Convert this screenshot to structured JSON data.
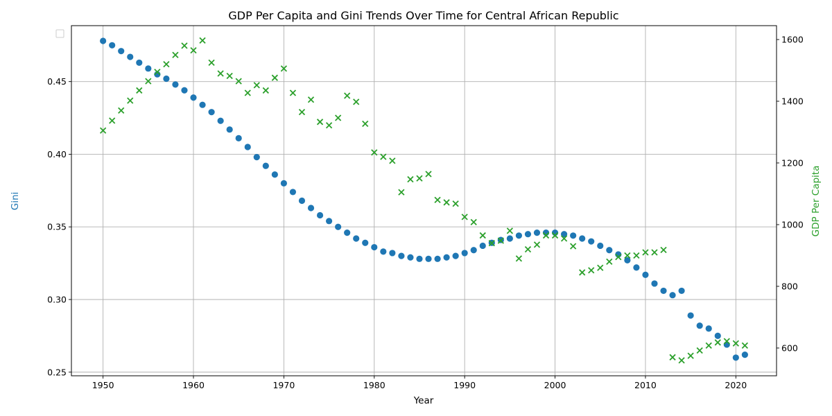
{
  "chart_data": {
    "type": "scatter",
    "title": "GDP Per Capita and Gini Trends Over Time for Central African Republic",
    "xlabel": "Year",
    "ylabel_left": "Gini",
    "ylabel_right": "GDP Per Capita",
    "xlim": [
      1946.5,
      2024.5
    ],
    "ylim_left": [
      0.2475,
      0.4885
    ],
    "ylim_right": [
      510,
      1645
    ],
    "x_ticks": [
      1950,
      1960,
      1970,
      1980,
      1990,
      2000,
      2010,
      2020
    ],
    "y_ticks_left": [
      0.25,
      0.3,
      0.35,
      0.4,
      0.45
    ],
    "y_ticks_left_labels": [
      "0.25",
      "0.30",
      "0.35",
      "0.40",
      "0.45"
    ],
    "y_ticks_right": [
      600,
      800,
      1000,
      1200,
      1400,
      1600
    ],
    "grid": true,
    "legend_placement": "upper-left",
    "colors": {
      "gini": "#1f77b4",
      "gdp": "#2ca02c"
    },
    "series": [
      {
        "axis": "left",
        "marker": "circle",
        "x": [
          1950,
          1951,
          1952,
          1953,
          1954,
          1955,
          1956,
          1957,
          1958,
          1959,
          1960,
          1961,
          1962,
          1963,
          1964,
          1965,
          1966,
          1967,
          1968,
          1969,
          1970,
          1971,
          1972,
          1973,
          1974,
          1975,
          1976,
          1977,
          1978,
          1979,
          1980,
          1981,
          1982,
          1983,
          1984,
          1985,
          1986,
          1987,
          1988,
          1989,
          1990,
          1991,
          1992,
          1993,
          1994,
          1995,
          1996,
          1997,
          1998,
          1999,
          2000,
          2001,
          2002,
          2003,
          2004,
          2005,
          2006,
          2007,
          2008,
          2009,
          2010,
          2011,
          2012,
          2013,
          2014,
          2015,
          2016,
          2017,
          2018,
          2019,
          2020,
          2021
        ],
        "values": [
          0.478,
          0.475,
          0.471,
          0.467,
          0.463,
          0.459,
          0.455,
          0.452,
          0.448,
          0.444,
          0.439,
          0.434,
          0.429,
          0.423,
          0.417,
          0.411,
          0.405,
          0.398,
          0.392,
          0.386,
          0.38,
          0.374,
          0.368,
          0.363,
          0.358,
          0.354,
          0.35,
          0.346,
          0.342,
          0.339,
          0.336,
          0.333,
          0.332,
          0.33,
          0.329,
          0.328,
          0.328,
          0.328,
          0.329,
          0.33,
          0.332,
          0.334,
          0.337,
          0.339,
          0.341,
          0.342,
          0.344,
          0.345,
          0.346,
          0.346,
          0.346,
          0.345,
          0.344,
          0.342,
          0.34,
          0.337,
          0.334,
          0.331,
          0.327,
          0.322,
          0.317,
          0.311,
          0.306,
          0.303,
          0.306,
          0.289,
          0.282,
          0.28,
          0.275,
          0.269,
          0.26,
          0.262
        ]
      },
      {
        "axis": "right",
        "marker": "x",
        "x": [
          1950,
          1951,
          1952,
          1953,
          1954,
          1955,
          1956,
          1957,
          1958,
          1959,
          1960,
          1961,
          1962,
          1963,
          1964,
          1965,
          1966,
          1967,
          1968,
          1969,
          1970,
          1971,
          1972,
          1973,
          1974,
          1975,
          1976,
          1977,
          1978,
          1979,
          1980,
          1981,
          1982,
          1983,
          1984,
          1985,
          1986,
          1987,
          1988,
          1989,
          1990,
          1991,
          1992,
          1993,
          1994,
          1995,
          1996,
          1997,
          1998,
          1999,
          2000,
          2001,
          2002,
          2003,
          2004,
          2005,
          2006,
          2007,
          2008,
          2009,
          2010,
          2011,
          2012,
          2013,
          2014,
          2015,
          2016,
          2017,
          2018,
          2019,
          2020,
          2021
        ],
        "values": [
          1305,
          1337,
          1370,
          1402,
          1435,
          1465,
          1495,
          1520,
          1550,
          1580,
          1565,
          1597,
          1525,
          1490,
          1482,
          1465,
          1427,
          1452,
          1435,
          1476,
          1506,
          1427,
          1365,
          1405,
          1333,
          1322,
          1346,
          1418,
          1398,
          1327,
          1234,
          1220,
          1207,
          1105,
          1147,
          1150,
          1164,
          1080,
          1072,
          1068,
          1025,
          1008,
          965,
          940,
          948,
          980,
          890,
          920,
          935,
          965,
          965,
          955,
          930,
          845,
          852,
          860,
          880,
          895,
          900,
          900,
          910,
          910,
          918,
          570,
          560,
          575,
          592,
          608,
          618,
          622,
          615,
          608
        ]
      }
    ]
  }
}
